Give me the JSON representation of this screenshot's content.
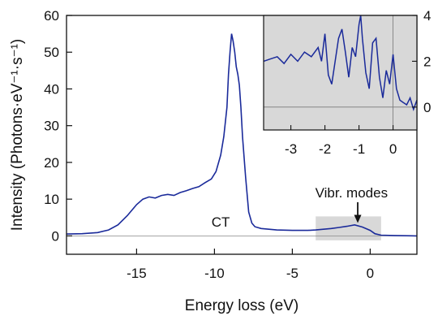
{
  "chart_data": [
    {
      "type": "line",
      "xlabel": "Energy loss (eV)",
      "ylabel": "Intensity (Photons·eV⁻¹·s⁻¹)",
      "xlim": [
        -19.5,
        3
      ],
      "ylim": [
        -5,
        60
      ],
      "xticks": [
        -15,
        -10,
        -5,
        0
      ],
      "xtick_labels": [
        "-15",
        "-10",
        "-5",
        "0"
      ],
      "yticks": [
        0,
        10,
        20,
        30,
        40,
        50,
        60
      ],
      "ytick_labels": [
        "0",
        "10",
        "20",
        "30",
        "40",
        "50",
        "60"
      ],
      "grid": false,
      "color": "#1a2a9a",
      "annotations": [
        {
          "text": "CT",
          "x": -9.6,
          "y": 2.5
        },
        {
          "text": "Vibr. modes",
          "x": -1.2,
          "y": 10.5,
          "arrow_to_x": -0.8,
          "arrow_to_y": 3.5
        }
      ],
      "highlight_region": {
        "x": [
          -3.5,
          0.7
        ],
        "y": [
          -1.2,
          5.3
        ],
        "color": "#d8d8d8"
      },
      "series": [
        {
          "x": [
            -19.5,
            -18.5,
            -17.5,
            -16.8,
            -16.2,
            -15.6,
            -15.0,
            -14.6,
            -14.2,
            -13.8,
            -13.4,
            -13.0,
            -12.6,
            -12.2,
            -11.8,
            -11.4,
            -11.0,
            -10.6,
            -10.2,
            -9.9,
            -9.6,
            -9.4,
            -9.2,
            -9.1,
            -9.0,
            -8.9,
            -8.8,
            -8.7,
            -8.6,
            -8.5,
            -8.4,
            -8.3,
            -8.2,
            -8.0,
            -7.8,
            -7.6,
            -7.4,
            -7.0,
            -6.0,
            -5.0,
            -4.0,
            -3.5,
            -3.0,
            -2.5,
            -2.0,
            -1.5,
            -1.0,
            -0.5,
            0.0,
            0.3,
            0.7,
            1.5,
            3.0
          ],
          "y": [
            0.5,
            0.6,
            0.9,
            1.6,
            3.0,
            5.5,
            8.5,
            10.0,
            10.6,
            10.3,
            11.0,
            11.3,
            11.0,
            11.8,
            12.3,
            12.9,
            13.4,
            14.5,
            15.5,
            17.5,
            22.0,
            27.0,
            35.0,
            44.0,
            50.0,
            55.0,
            53.0,
            50.0,
            46.0,
            44.0,
            41.0,
            35.0,
            27.0,
            16.0,
            6.5,
            3.5,
            2.5,
            2.0,
            1.6,
            1.5,
            1.5,
            1.6,
            1.8,
            2.0,
            2.3,
            2.6,
            3.0,
            2.4,
            1.5,
            0.6,
            0.2,
            0.1,
            0.0
          ]
        }
      ]
    },
    {
      "type": "line",
      "inset": true,
      "xlim": [
        -3.8,
        0.7
      ],
      "ylim": [
        -1.0,
        4.0
      ],
      "xticks": [
        -3,
        -2,
        -1,
        0
      ],
      "xtick_labels": [
        "-3",
        "-2",
        "-1",
        "0"
      ],
      "yticks": [
        0,
        2,
        4
      ],
      "ytick_labels": [
        "0",
        "2",
        "4"
      ],
      "y_axis_side": "right",
      "background": "#d8d8d8",
      "grid": false,
      "color": "#1a2a9a",
      "series": [
        {
          "x": [
            -3.8,
            -3.6,
            -3.4,
            -3.2,
            -3.0,
            -2.8,
            -2.6,
            -2.4,
            -2.2,
            -2.1,
            -2.0,
            -1.9,
            -1.8,
            -1.7,
            -1.6,
            -1.5,
            -1.4,
            -1.3,
            -1.2,
            -1.1,
            -1.0,
            -0.95,
            -0.9,
            -0.8,
            -0.7,
            -0.6,
            -0.5,
            -0.4,
            -0.3,
            -0.2,
            -0.1,
            0.0,
            0.1,
            0.2,
            0.3,
            0.4,
            0.5,
            0.6,
            0.7
          ],
          "y": [
            2.0,
            2.1,
            2.2,
            1.9,
            2.3,
            2.0,
            2.4,
            2.2,
            2.6,
            2.0,
            3.2,
            1.4,
            1.0,
            2.0,
            3.0,
            3.4,
            2.4,
            1.3,
            2.6,
            2.2,
            3.6,
            4.0,
            3.0,
            1.5,
            0.8,
            2.8,
            3.0,
            1.3,
            0.4,
            1.6,
            1.0,
            2.3,
            0.8,
            0.3,
            0.2,
            0.1,
            0.4,
            -0.1,
            0.3
          ]
        }
      ]
    }
  ]
}
